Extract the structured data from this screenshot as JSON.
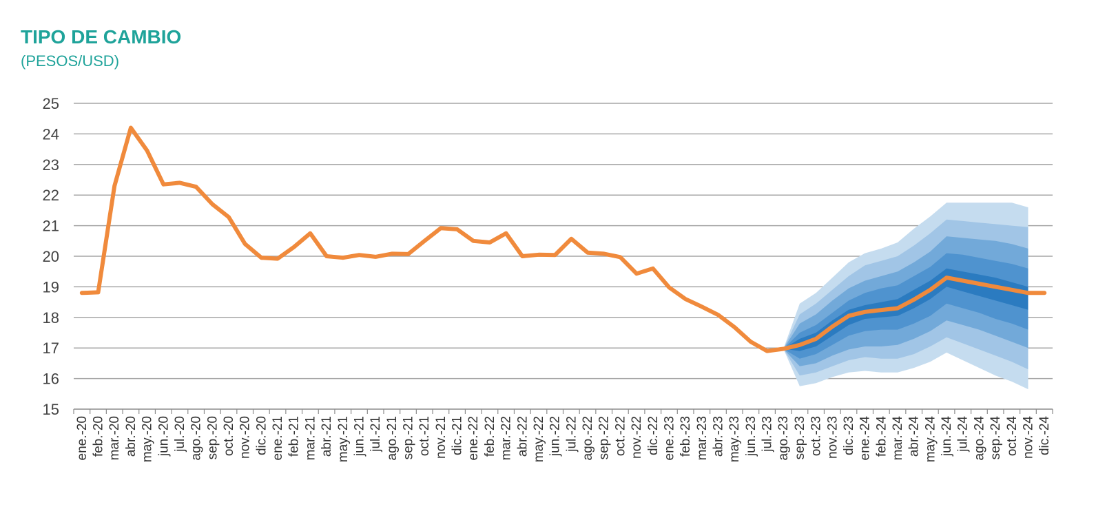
{
  "chart_data": {
    "type": "line",
    "title": "TIPO DE CAMBIO",
    "subtitle": "(PESOS/USD)",
    "xlabel": "",
    "ylabel": "",
    "ylim": [
      15,
      25
    ],
    "yticks": [
      15,
      16,
      17,
      18,
      19,
      20,
      21,
      22,
      23,
      24,
      25
    ],
    "grid": true,
    "legend": "none",
    "categories": [
      "ene.-20",
      "feb.-20",
      "mar.-20",
      "abr.-20",
      "may.-20",
      "jun.-20",
      "jul.-20",
      "ago.-20",
      "sep.-20",
      "oct.-20",
      "nov.-20",
      "dic.-20",
      "ene.-21",
      "feb.-21",
      "mar.-21",
      "abr.-21",
      "may.-21",
      "jun.-21",
      "jul.-21",
      "ago.-21",
      "sep.-21",
      "oct.-21",
      "nov.-21",
      "dic.-21",
      "ene.-22",
      "feb.-22",
      "mar.-22",
      "abr.-22",
      "may.-22",
      "jun.-22",
      "jul.-22",
      "ago.-22",
      "sep.-22",
      "oct.-22",
      "nov.-22",
      "dic.-22",
      "ene.-23",
      "feb.-23",
      "mar.-23",
      "abr.-23",
      "may.-23",
      "jun.-23",
      "jul.-23",
      "ago.-23",
      "sep.-23",
      "oct.-23",
      "nov.-23",
      "dic.-23",
      "ene.-24",
      "feb.-24",
      "mar.-24",
      "abr.-24",
      "may.-24",
      "jun.-24",
      "jul.-24",
      "ago.-24",
      "sep.-24",
      "oct.-24",
      "nov.-24",
      "dic.-24"
    ],
    "series": [
      {
        "values": [
          18.8,
          18.82,
          22.3,
          24.2,
          23.45,
          22.35,
          22.4,
          22.27,
          21.7,
          21.28,
          20.4,
          19.95,
          19.92,
          20.3,
          20.75,
          20.0,
          19.95,
          20.04,
          19.98,
          20.08,
          20.07,
          20.5,
          20.92,
          20.88,
          20.5,
          20.45,
          20.75,
          20.0,
          20.05,
          20.04,
          20.57,
          20.12,
          20.08,
          19.97,
          19.43,
          19.6,
          18.98,
          18.6,
          18.35,
          18.08,
          17.68,
          17.2,
          16.9,
          16.97,
          17.1,
          17.3,
          17.7,
          18.05,
          18.18,
          18.24,
          18.3,
          18.58,
          18.9,
          19.3,
          19.2,
          19.1,
          19.0,
          18.9,
          18.8,
          18.8
        ],
        "color": "#f08a3c"
      }
    ],
    "fan": {
      "start_index": 43,
      "bands": [
        {
          "lower": [
            16.97,
            15.75,
            15.85,
            16.05,
            16.2,
            16.25,
            16.2,
            16.2,
            16.35,
            16.55,
            16.85,
            16.6,
            16.35,
            16.1,
            15.9,
            15.65
          ],
          "upper": [
            16.97,
            18.45,
            18.8,
            19.3,
            19.8,
            20.1,
            20.25,
            20.45,
            20.9,
            21.3,
            21.75,
            21.75,
            21.75,
            21.75,
            21.75,
            21.6
          ],
          "color": "#c5dcef"
        },
        {
          "lower": [
            16.97,
            16.1,
            16.2,
            16.4,
            16.6,
            16.7,
            16.65,
            16.65,
            16.8,
            17.05,
            17.35,
            17.15,
            16.95,
            16.75,
            16.55,
            16.3
          ],
          "upper": [
            16.97,
            18.1,
            18.45,
            18.9,
            19.35,
            19.7,
            19.85,
            20.0,
            20.35,
            20.75,
            21.2,
            21.15,
            21.1,
            21.05,
            21.0,
            20.95
          ],
          "color": "#a1c5e6"
        },
        {
          "lower": [
            16.97,
            16.4,
            16.5,
            16.75,
            16.95,
            17.05,
            17.05,
            17.1,
            17.3,
            17.55,
            17.9,
            17.75,
            17.6,
            17.4,
            17.2,
            17.0
          ],
          "upper": [
            16.97,
            17.8,
            18.1,
            18.55,
            18.95,
            19.2,
            19.35,
            19.5,
            19.8,
            20.15,
            20.65,
            20.6,
            20.55,
            20.5,
            20.4,
            20.25
          ],
          "color": "#72a9d9"
        },
        {
          "lower": [
            16.97,
            16.65,
            16.8,
            17.1,
            17.4,
            17.55,
            17.6,
            17.6,
            17.8,
            18.05,
            18.45,
            18.3,
            18.15,
            17.95,
            17.8,
            17.6
          ],
          "upper": [
            16.97,
            17.5,
            17.75,
            18.15,
            18.55,
            18.8,
            18.95,
            19.05,
            19.35,
            19.65,
            20.1,
            20.05,
            19.95,
            19.85,
            19.75,
            19.6
          ],
          "color": "#4f93cf"
        },
        {
          "lower": [
            16.97,
            16.9,
            17.05,
            17.4,
            17.75,
            17.95,
            18.0,
            18.05,
            18.3,
            18.6,
            19.0,
            18.85,
            18.7,
            18.55,
            18.4,
            18.25
          ],
          "upper": [
            16.97,
            17.3,
            17.5,
            17.9,
            18.25,
            18.4,
            18.5,
            18.6,
            18.9,
            19.2,
            19.6,
            19.5,
            19.4,
            19.3,
            19.15,
            19.0
          ],
          "color": "#2b7bc0"
        }
      ]
    }
  }
}
